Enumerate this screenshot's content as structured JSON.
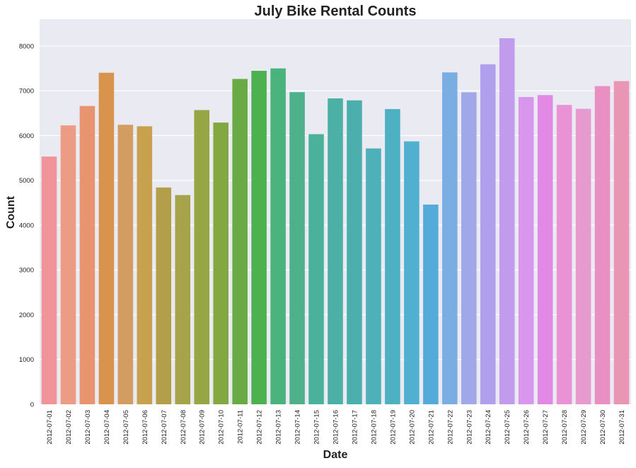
{
  "chart_data": {
    "type": "bar",
    "title": "July Bike Rental Counts",
    "xlabel": "Date",
    "ylabel": "Count",
    "ylim": [
      0,
      8600
    ],
    "yticks": [
      0,
      1000,
      2000,
      3000,
      4000,
      5000,
      6000,
      7000,
      8000
    ],
    "grid": true,
    "legend": "none",
    "background_color": "#eaeaf2",
    "grid_color": "#ffffff",
    "categories": [
      "2012-07-01",
      "2012-07-02",
      "2012-07-03",
      "2012-07-04",
      "2012-07-05",
      "2012-07-06",
      "2012-07-07",
      "2012-07-08",
      "2012-07-09",
      "2012-07-10",
      "2012-07-11",
      "2012-07-12",
      "2012-07-13",
      "2012-07-14",
      "2012-07-15",
      "2012-07-16",
      "2012-07-17",
      "2012-07-18",
      "2012-07-19",
      "2012-07-20",
      "2012-07-21",
      "2012-07-22",
      "2012-07-23",
      "2012-07-24",
      "2012-07-25",
      "2012-07-26",
      "2012-07-27",
      "2012-07-28",
      "2012-07-29",
      "2012-07-30",
      "2012-07-31"
    ],
    "values": [
      5531,
      6227,
      6660,
      7403,
      6241,
      6207,
      4840,
      4672,
      6569,
      6290,
      7264,
      7446,
      7499,
      6969,
      6031,
      6830,
      6786,
      5713,
      6591,
      5870,
      4459,
      7410,
      6966,
      7592,
      8173,
      6861,
      6904,
      6685,
      6597,
      7105,
      7216
    ],
    "colors": [
      "#f0949a",
      "#ec9b84",
      "#e7946f",
      "#d8944c",
      "#d39d62",
      "#c7a14e",
      "#b39f4a",
      "#a7a34a",
      "#96a645",
      "#83a741",
      "#6aaa45",
      "#4eb150",
      "#4ab27b",
      "#4db18c",
      "#4cb19b",
      "#4db0a6",
      "#4bafae",
      "#4eb0b8",
      "#4eb0c3",
      "#4fb0cf",
      "#54aad9",
      "#7aaee3",
      "#a0a8ea",
      "#b09fec",
      "#c29cec",
      "#d897ec",
      "#e289e6",
      "#e992d6",
      "#e79ace",
      "#ea8fc2",
      "#e996b5"
    ]
  }
}
